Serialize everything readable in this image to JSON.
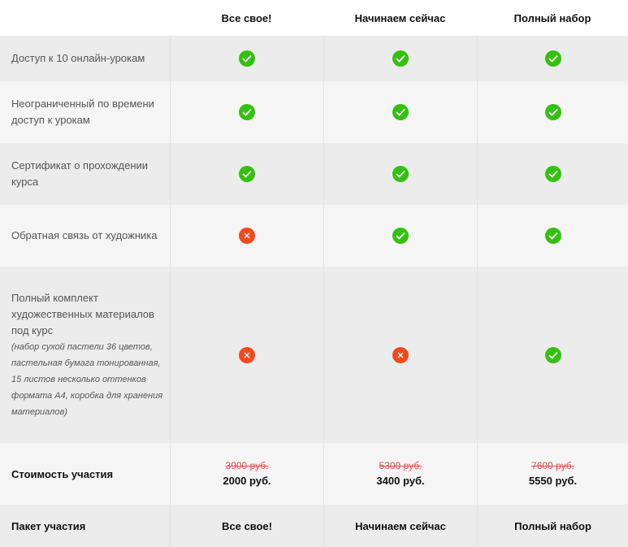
{
  "plans": [
    "Все свое!",
    "Начинаем сейчас",
    "Полный набор"
  ],
  "features": [
    {
      "label": "Доступ к 10 онлайн-урокам",
      "note": "",
      "values": [
        "check",
        "check",
        "check"
      ]
    },
    {
      "label": "Неограниченный по времени доступ к урокам",
      "note": "",
      "values": [
        "check",
        "check",
        "check"
      ]
    },
    {
      "label": "Сертификат о прохождении курса",
      "note": "",
      "values": [
        "check",
        "check",
        "check"
      ]
    },
    {
      "label": "Обратная связь от художника",
      "note": "",
      "values": [
        "cross",
        "check",
        "check"
      ]
    },
    {
      "label": "Полный комплект художественных материалов под курс",
      "note": "(набор сухой пастели 36 цветов, пастельная бумага тонированная, 15 листов несколько оттенков формата А4, коробка для хранения материалов)",
      "values": [
        "cross",
        "cross",
        "check"
      ]
    }
  ],
  "price": {
    "label": "Стоимость участия",
    "old": [
      "3900 руб.",
      "5300 руб.",
      "7600 руб."
    ],
    "new": [
      "2000 руб.",
      "3400 руб.",
      "5550 руб."
    ]
  },
  "package": {
    "label": "Пакет участия",
    "names": [
      "Все свое!",
      "Начинаем сейчас",
      "Полный набор"
    ]
  },
  "colors": {
    "check": "#34c10f",
    "cross": "#f04a1c",
    "old_price": "#e64b4b"
  }
}
